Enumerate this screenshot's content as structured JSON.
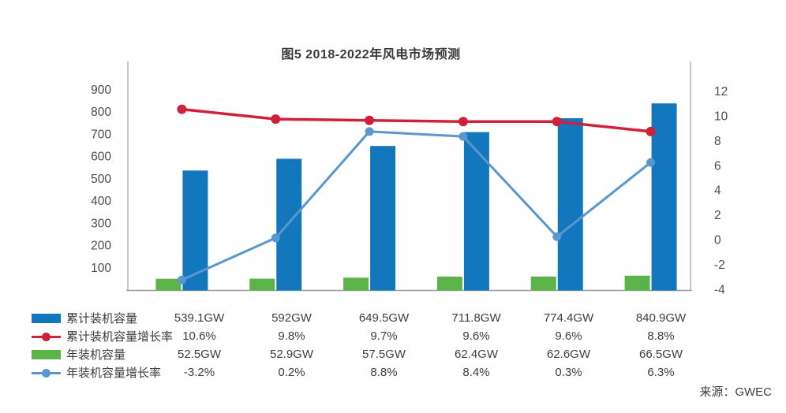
{
  "title": "图5 2018-2022年风电市场预测",
  "source": "来源：GWEC",
  "colors": {
    "bar_cumulative": "#1277BD",
    "line_cumulative_growth": "#D0213A",
    "bar_annual": "#5CB448",
    "line_annual_growth": "#5997CE",
    "axis_line": "#b4b4b4",
    "baseline": "#9a9a9a",
    "tick_text": "#4c4c4c",
    "body_text": "#3d3d3d"
  },
  "chart_data": {
    "type": "bar",
    "subtype": "combo-bar-line-dual-axis",
    "title": "图5 2018-2022年风电市场预测",
    "categories": [
      "",
      "",
      "",
      "",
      "",
      ""
    ],
    "series": [
      {
        "name": "累计装机容量",
        "type": "bar",
        "axis": "left",
        "unit": "GW",
        "color": "#1277BD",
        "values": [
          539.1,
          592,
          649.5,
          711.8,
          774.4,
          840.9
        ],
        "labels": [
          "539.1GW",
          "592GW",
          "649.5GW",
          "711.8GW",
          "774.4GW",
          "840.9GW"
        ]
      },
      {
        "name": "累计装机容量增长率",
        "type": "line",
        "axis": "right",
        "unit": "%",
        "color": "#D0213A",
        "values": [
          10.6,
          9.8,
          9.7,
          9.6,
          9.6,
          8.8
        ],
        "labels": [
          "10.6%",
          "9.8%",
          "9.7%",
          "9.6%",
          "9.6%",
          "8.8%"
        ]
      },
      {
        "name": "年装机容量",
        "type": "bar",
        "axis": "left",
        "unit": "GW",
        "color": "#5CB448",
        "values": [
          52.5,
          52.9,
          57.5,
          62.4,
          62.6,
          66.5
        ],
        "labels": [
          "52.5GW",
          "52.9GW",
          "57.5GW",
          "62.4GW",
          "62.6GW",
          "66.5GW"
        ]
      },
      {
        "name": "年装机容量增长率",
        "type": "line",
        "axis": "right",
        "unit": "%",
        "color": "#5997CE",
        "values": [
          -3.2,
          0.2,
          8.8,
          8.4,
          0.3,
          6.3
        ],
        "labels": [
          "-3.2%",
          "0.2%",
          "8.8%",
          "8.4%",
          "0.3%",
          "6.3%"
        ]
      }
    ],
    "left_axis": {
      "ticks": [
        900,
        800,
        700,
        600,
        500,
        400,
        300,
        200,
        100
      ],
      "range": [
        0,
        1030
      ]
    },
    "right_axis": {
      "ticks": [
        12,
        10,
        8,
        6,
        4,
        2,
        0,
        -2,
        -4
      ],
      "range": [
        -4.2,
        14.5
      ]
    },
    "grid": false,
    "legend_position": "bottom-table",
    "source": "来源：GWEC"
  }
}
